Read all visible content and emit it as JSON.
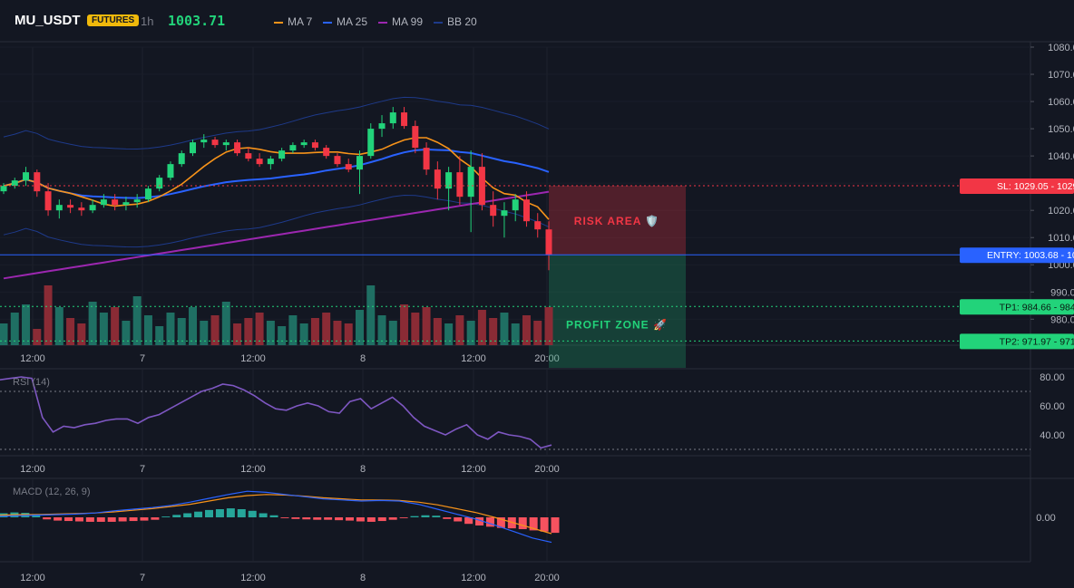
{
  "header": {
    "symbol": "MU_USDT",
    "badge": "FUTURES",
    "timeframe": "1h",
    "last_price": "1003.71",
    "legend": [
      {
        "label": "MA 7",
        "color": "#f7931a"
      },
      {
        "label": "MA 25",
        "color": "#2962ff"
      },
      {
        "label": "MA 99",
        "color": "#9c27b0"
      },
      {
        "label": "BB 20",
        "color": "#1e3a8a"
      }
    ]
  },
  "colors": {
    "up": "#26a69a",
    "up_bright": "#22d37a",
    "down": "#f23645",
    "ma7": "#f7931a",
    "ma25": "#2962ff",
    "ma99": "#9c27b0",
    "bb": "#1e3a8a",
    "rsi": "#7e57c2",
    "macd": "#2962ff",
    "signal": "#f7931a"
  },
  "chart_data": [
    {
      "type": "candlestick",
      "title": "MU_USDT",
      "ylim": [
        975,
        1082
      ],
      "y_ticks": [
        "1080.00",
        "1070.00",
        "1060.00",
        "1050.00",
        "1040.00",
        "1030.00",
        "1020.00",
        "1010.00",
        "1000.00",
        "990.00",
        "980.00"
      ],
      "x_ticks": [
        "12:00",
        "7",
        "12:00",
        "8",
        "12:00",
        "20:00"
      ],
      "candles": [
        [
          1027,
          1030,
          1026,
          1029
        ],
        [
          1029,
          1032,
          1028,
          1031
        ],
        [
          1031,
          1036,
          1029,
          1034
        ],
        [
          1034,
          1035,
          1025,
          1027
        ],
        [
          1027,
          1030,
          1018,
          1020
        ],
        [
          1020,
          1024,
          1017,
          1022
        ],
        [
          1022,
          1024,
          1019,
          1021
        ],
        [
          1021,
          1023,
          1018,
          1020
        ],
        [
          1020,
          1024,
          1019,
          1022
        ],
        [
          1022,
          1026,
          1021,
          1024
        ],
        [
          1024,
          1026,
          1020,
          1022
        ],
        [
          1022,
          1025,
          1020,
          1023
        ],
        [
          1023,
          1026,
          1021,
          1024
        ],
        [
          1024,
          1029,
          1023,
          1028
        ],
        [
          1028,
          1033,
          1027,
          1032
        ],
        [
          1032,
          1038,
          1031,
          1037
        ],
        [
          1037,
          1042,
          1036,
          1041
        ],
        [
          1041,
          1046,
          1040,
          1045
        ],
        [
          1045,
          1048,
          1043,
          1046
        ],
        [
          1046,
          1047,
          1043,
          1044
        ],
        [
          1044,
          1046,
          1042,
          1045
        ],
        [
          1045,
          1046,
          1040,
          1041
        ],
        [
          1041,
          1043,
          1038,
          1039
        ],
        [
          1039,
          1041,
          1036,
          1037
        ],
        [
          1037,
          1040,
          1035,
          1039
        ],
        [
          1039,
          1043,
          1038,
          1042
        ],
        [
          1042,
          1045,
          1041,
          1044
        ],
        [
          1044,
          1046,
          1043,
          1045
        ],
        [
          1045,
          1046,
          1042,
          1043
        ],
        [
          1043,
          1044,
          1039,
          1040
        ],
        [
          1040,
          1041,
          1036,
          1037
        ],
        [
          1037,
          1039,
          1034,
          1035
        ],
        [
          1035,
          1042,
          1026,
          1040
        ],
        [
          1040,
          1052,
          1039,
          1050
        ],
        [
          1050,
          1055,
          1047,
          1052
        ],
        [
          1052,
          1058,
          1050,
          1056
        ],
        [
          1056,
          1058,
          1050,
          1051
        ],
        [
          1051,
          1053,
          1041,
          1043
        ],
        [
          1043,
          1045,
          1033,
          1035
        ],
        [
          1035,
          1038,
          1024,
          1028
        ],
        [
          1028,
          1036,
          1020,
          1034
        ],
        [
          1034,
          1040,
          1022,
          1025
        ],
        [
          1025,
          1042,
          1012,
          1036
        ],
        [
          1036,
          1041,
          1020,
          1022
        ],
        [
          1022,
          1027,
          1014,
          1018
        ],
        [
          1018,
          1023,
          1010,
          1020
        ],
        [
          1020,
          1026,
          1016,
          1024
        ],
        [
          1024,
          1027,
          1014,
          1016
        ],
        [
          1016,
          1019,
          1010,
          1013
        ],
        [
          1013,
          1016,
          998,
          1003.71
        ]
      ],
      "volumes": [
        8,
        12,
        15,
        6,
        22,
        14,
        10,
        8,
        16,
        12,
        14,
        9,
        18,
        11,
        7,
        12,
        10,
        14,
        9,
        11,
        16,
        8,
        10,
        12,
        9,
        7,
        11,
        8,
        10,
        12,
        9,
        8,
        13,
        22,
        11,
        9,
        15,
        12,
        14,
        10,
        8,
        11,
        9,
        13,
        10,
        12,
        8,
        11,
        9,
        14
      ]
    },
    {
      "type": "table",
      "levels": [
        {
          "label": "SL: 1029.05",
          "value": "1029.05",
          "price": 1029.05,
          "color": "#f23645"
        },
        {
          "label": "ENTRY: 1003.68",
          "value": "1003.68",
          "price": 1003.68,
          "color": "#2962ff"
        },
        {
          "label": "TP1: 984.66",
          "value": "984.66",
          "price": 984.66,
          "color": "#22d37a"
        },
        {
          "label": "TP2: 971.97",
          "value": "971.97",
          "price": 971.97,
          "color": "#22d37a"
        }
      ],
      "zones": {
        "risk": "RISK AREA 🛡️",
        "profit": "PROFIT ZONE 🚀"
      }
    },
    {
      "type": "line",
      "title": "RSI (14)",
      "ylim": [
        30,
        85
      ],
      "y_ticks": [
        "80.00",
        "60.00",
        "40.00"
      ],
      "x_ticks": [
        "12:00",
        "7",
        "12:00",
        "8",
        "12:00",
        "20:00"
      ],
      "values": [
        78,
        79,
        80,
        79,
        52,
        42,
        46,
        45,
        47,
        48,
        50,
        51,
        51,
        48,
        52,
        54,
        58,
        62,
        66,
        70,
        72,
        75,
        74,
        71,
        67,
        62,
        58,
        57,
        60,
        62,
        60,
        56,
        55,
        63,
        65,
        58,
        62,
        66,
        60,
        52,
        46,
        43,
        40,
        44,
        47,
        40,
        37,
        42,
        40,
        39,
        37,
        31,
        33
      ]
    },
    {
      "type": "bar",
      "title": "MACD (12, 26, 9)",
      "y_ticks": [
        "0.00"
      ],
      "x_ticks": [
        "12:00",
        "7",
        "12:00",
        "8",
        "12:00",
        "20:00"
      ],
      "histogram": [
        1,
        1.2,
        1.1,
        0.8,
        -0.5,
        -0.8,
        -0.9,
        -1,
        -1.1,
        -1.1,
        -1.1,
        -1,
        -0.9,
        -0.8,
        -0.6,
        0.2,
        0.6,
        1,
        1.4,
        1.8,
        2,
        2.2,
        2,
        1.6,
        1,
        0.5,
        -0.2,
        -0.4,
        -0.5,
        -0.6,
        -0.6,
        -0.7,
        -0.8,
        -1,
        -1.1,
        -0.9,
        -0.6,
        -0.2,
        0.3,
        0.5,
        0.4,
        -0.4,
        -1,
        -1.6,
        -2,
        -2.3,
        -2.6,
        -2.7,
        -2.9,
        -3.2,
        -3.5,
        -3.8
      ],
      "macd": [
        0.2,
        0.3,
        0.4,
        0.5,
        0.6,
        0.8,
        1.2,
        1.5,
        1.8,
        2.2,
        2.8,
        3.5,
        4.2,
        4.8,
        4.6,
        4.2,
        3.8,
        3.4,
        3.2,
        3.0,
        3.1,
        3.0,
        2.4,
        1.5,
        0.6,
        -0.3,
        -1.4,
        -2.6,
        -3.8,
        -4.6
      ],
      "signal": [
        0.4,
        0.5,
        0.5,
        0.6,
        0.7,
        0.8,
        1.0,
        1.3,
        1.6,
        2.0,
        2.4,
        3.0,
        3.6,
        4.0,
        4.2,
        4.1,
        3.9,
        3.6,
        3.4,
        3.2,
        3.2,
        3.1,
        2.8,
        2.3,
        1.6,
        0.9,
        0.0,
        -1.0,
        -2.0,
        -3.0
      ]
    }
  ]
}
